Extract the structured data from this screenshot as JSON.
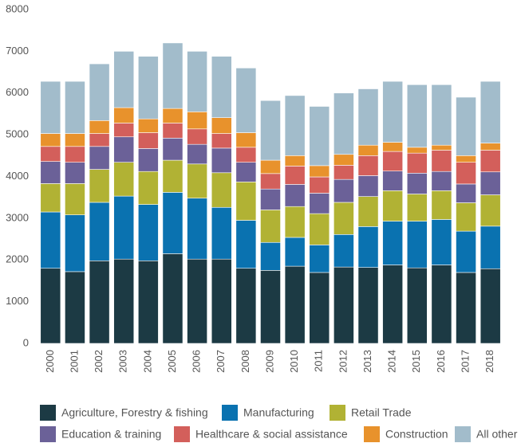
{
  "chart_data": {
    "type": "stacked_bar",
    "categories": [
      "2000",
      "2001",
      "2002",
      "2003",
      "2004",
      "2005",
      "2006",
      "2007",
      "2008",
      "2009",
      "2010",
      "2011",
      "2012",
      "2013",
      "2014",
      "2015",
      "2016",
      "2017",
      "2018"
    ],
    "series": [
      {
        "name": "Agriculture, Forestry & fishing",
        "color": "#1c3a44",
        "values": [
          1800,
          1720,
          1980,
          2020,
          1980,
          2150,
          2020,
          2020,
          1800,
          1750,
          1850,
          1700,
          1830,
          1820,
          1880,
          1810,
          1880,
          1700,
          1790
        ]
      },
      {
        "name": "Manufacturing",
        "color": "#0a72b0",
        "values": [
          1350,
          1360,
          1400,
          1510,
          1350,
          1470,
          1460,
          1240,
          1150,
          670,
          690,
          660,
          780,
          980,
          1050,
          1120,
          1090,
          990,
          1020
        ]
      },
      {
        "name": "Retail Trade",
        "color": "#b1b234",
        "values": [
          680,
          750,
          790,
          810,
          790,
          770,
          820,
          830,
          920,
          780,
          740,
          750,
          770,
          720,
          730,
          650,
          690,
          680,
          750
        ]
      },
      {
        "name": "Education & training",
        "color": "#6b6198",
        "values": [
          530,
          510,
          550,
          610,
          550,
          530,
          470,
          590,
          470,
          500,
          530,
          490,
          550,
          500,
          470,
          500,
          460,
          450,
          550
        ]
      },
      {
        "name": "Healthcare & social assistance",
        "color": "#d35f5b",
        "values": [
          360,
          380,
          310,
          330,
          380,
          360,
          370,
          350,
          360,
          370,
          440,
          390,
          340,
          480,
          470,
          480,
          510,
          520,
          520
        ]
      },
      {
        "name": "Construction",
        "color": "#e8922c",
        "values": [
          310,
          310,
          310,
          370,
          330,
          350,
          410,
          380,
          350,
          320,
          250,
          270,
          260,
          250,
          220,
          140,
          120,
          160,
          170
        ]
      },
      {
        "name": "All other",
        "color": "#a2bccb",
        "values": [
          1250,
          1250,
          1360,
          1350,
          1500,
          1570,
          1450,
          1470,
          1550,
          1430,
          1440,
          1420,
          1470,
          1350,
          1460,
          1500,
          1450,
          1400,
          1480
        ]
      }
    ],
    "ylim": [
      0,
      8000
    ],
    "yticks": [
      0,
      1000,
      2000,
      3000,
      4000,
      5000,
      6000,
      7000,
      8000
    ],
    "grid": false
  }
}
